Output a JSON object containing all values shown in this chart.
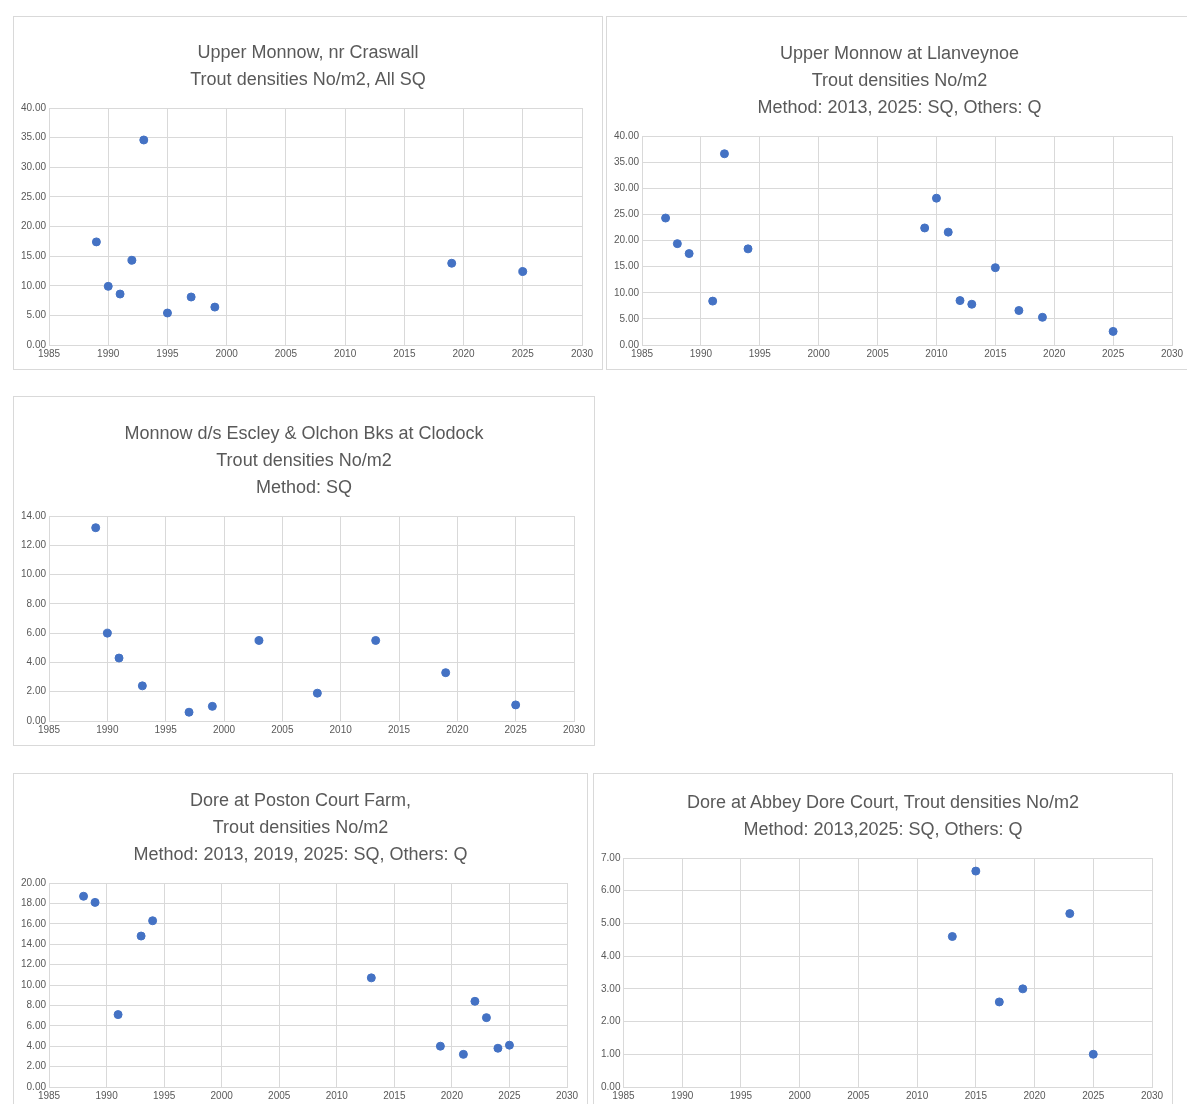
{
  "chart_data": [
    {
      "type": "scatter",
      "title": "Upper Monnow, nr Craswall\nTrout densities No/m2, All SQ",
      "x": [
        1989,
        1990,
        1991,
        1992,
        1993,
        1995,
        1997,
        1999,
        2019,
        2025
      ],
      "values": [
        17.4,
        9.9,
        8.6,
        14.3,
        34.6,
        5.4,
        8.1,
        6.4,
        13.8,
        12.4
      ],
      "color": "#4472c4",
      "marker": "circle",
      "grid": true,
      "xlim": [
        1985,
        2030
      ],
      "xticks": [
        1985,
        1990,
        1995,
        2000,
        2005,
        2010,
        2015,
        2020,
        2025,
        2030
      ],
      "ylim": [
        0,
        40
      ],
      "yticks": [
        {
          "value": 0,
          "label": "0.00"
        },
        {
          "value": 5,
          "label": "5.00"
        },
        {
          "value": 10,
          "label": "10.00"
        },
        {
          "value": 15,
          "label": "15.00"
        },
        {
          "value": 20,
          "label": "20.00"
        },
        {
          "value": 25,
          "label": "25.00"
        },
        {
          "value": 30,
          "label": "30.00"
        },
        {
          "value": 35,
          "label": "35.00"
        },
        {
          "value": 40,
          "label": "40.00"
        }
      ]
    },
    {
      "type": "scatter",
      "title": "Upper Monnow at Llanveynoe\nTrout densities No/m2\nMethod: 2013, 2025: SQ, Others: Q",
      "x": [
        1987,
        1988,
        1989,
        1991,
        1992,
        1994,
        2009,
        2010,
        2011,
        2012,
        2013,
        2015,
        2017,
        2019,
        2025
      ],
      "values": [
        24.3,
        19.4,
        17.5,
        8.4,
        36.6,
        18.4,
        22.4,
        28.1,
        21.6,
        8.5,
        7.8,
        14.8,
        6.6,
        5.3,
        2.6
      ],
      "color": "#4472c4",
      "marker": "circle",
      "grid": true,
      "xlim": [
        1985,
        2030
      ],
      "xticks": [
        1985,
        1990,
        1995,
        2000,
        2005,
        2010,
        2015,
        2020,
        2025,
        2030
      ],
      "ylim": [
        0,
        40
      ],
      "yticks": [
        {
          "value": 0,
          "label": "0.00"
        },
        {
          "value": 5,
          "label": "5.00"
        },
        {
          "value": 10,
          "label": "10.00"
        },
        {
          "value": 15,
          "label": "15.00"
        },
        {
          "value": 20,
          "label": "20.00"
        },
        {
          "value": 25,
          "label": "25.00"
        },
        {
          "value": 30,
          "label": "30.00"
        },
        {
          "value": 35,
          "label": "35.00"
        },
        {
          "value": 40,
          "label": "40.00"
        }
      ]
    },
    {
      "type": "scatter",
      "title": "Monnow d/s Escley & Olchon Bks at Clodock\nTrout densities No/m2\nMethod: SQ",
      "x": [
        1989,
        1990,
        1991,
        1993,
        1997,
        1999,
        2003,
        2008,
        2013,
        2019,
        2025
      ],
      "values": [
        13.2,
        6.0,
        4.3,
        2.4,
        0.6,
        1.0,
        5.5,
        1.9,
        5.5,
        3.3,
        1.1
      ],
      "color": "#4472c4",
      "marker": "circle",
      "grid": true,
      "xlim": [
        1985,
        2030
      ],
      "xticks": [
        1985,
        1990,
        1995,
        2000,
        2005,
        2010,
        2015,
        2020,
        2025,
        2030
      ],
      "ylim": [
        0,
        14
      ],
      "yticks": [
        {
          "value": 0,
          "label": "0.00"
        },
        {
          "value": 2,
          "label": "2.00"
        },
        {
          "value": 4,
          "label": "4.00"
        },
        {
          "value": 6,
          "label": "6.00"
        },
        {
          "value": 8,
          "label": "8.00"
        },
        {
          "value": 10,
          "label": "10.00"
        },
        {
          "value": 12,
          "label": "12.00"
        },
        {
          "value": 14,
          "label": "14.00"
        }
      ]
    },
    {
      "type": "scatter",
      "title": "Dore at Poston Court Farm,\nTrout densities No/m2\nMethod: 2013, 2019, 2025: SQ, Others: Q",
      "x": [
        1988,
        1989,
        1991,
        1993,
        1994,
        2013,
        2019,
        2021,
        2022,
        2023,
        2024,
        2025
      ],
      "values": [
        18.7,
        18.1,
        7.1,
        14.8,
        16.3,
        10.7,
        4.0,
        3.2,
        8.4,
        6.8,
        3.8,
        4.1
      ],
      "color": "#4472c4",
      "marker": "circle",
      "grid": true,
      "xlim": [
        1985,
        2030
      ],
      "xticks": [
        1985,
        1990,
        1995,
        2000,
        2005,
        2010,
        2015,
        2020,
        2025,
        2030
      ],
      "ylim": [
        0,
        20
      ],
      "yticks": [
        {
          "value": 0,
          "label": "0.00"
        },
        {
          "value": 2,
          "label": "2.00"
        },
        {
          "value": 4,
          "label": "4.00"
        },
        {
          "value": 6,
          "label": "6.00"
        },
        {
          "value": 8,
          "label": "8.00"
        },
        {
          "value": 10,
          "label": "10.00"
        },
        {
          "value": 12,
          "label": "12.00"
        },
        {
          "value": 14,
          "label": "14.00"
        },
        {
          "value": 16,
          "label": "16.00"
        },
        {
          "value": 18,
          "label": "18.00"
        },
        {
          "value": 20,
          "label": "20.00"
        }
      ]
    },
    {
      "type": "scatter",
      "title": "Dore at Abbey Dore Court, Trout densities No/m2\nMethod: 2013,2025: SQ, Others: Q",
      "x": [
        2013,
        2015,
        2017,
        2019,
        2023,
        2025
      ],
      "values": [
        4.6,
        6.6,
        2.6,
        3.0,
        5.3,
        1.0
      ],
      "color": "#4472c4",
      "marker": "circle",
      "grid": true,
      "xlim": [
        1985,
        2030
      ],
      "xticks": [
        1985,
        1990,
        1995,
        2000,
        2005,
        2010,
        2015,
        2020,
        2025,
        2030
      ],
      "ylim": [
        0,
        7
      ],
      "yticks": [
        {
          "value": 0,
          "label": "0.00"
        },
        {
          "value": 1,
          "label": "1.00"
        },
        {
          "value": 2,
          "label": "2.00"
        },
        {
          "value": 3,
          "label": "3.00"
        },
        {
          "value": 4,
          "label": "4.00"
        },
        {
          "value": 5,
          "label": "5.00"
        },
        {
          "value": 6,
          "label": "6.00"
        },
        {
          "value": 7,
          "label": "7.00"
        }
      ]
    }
  ]
}
